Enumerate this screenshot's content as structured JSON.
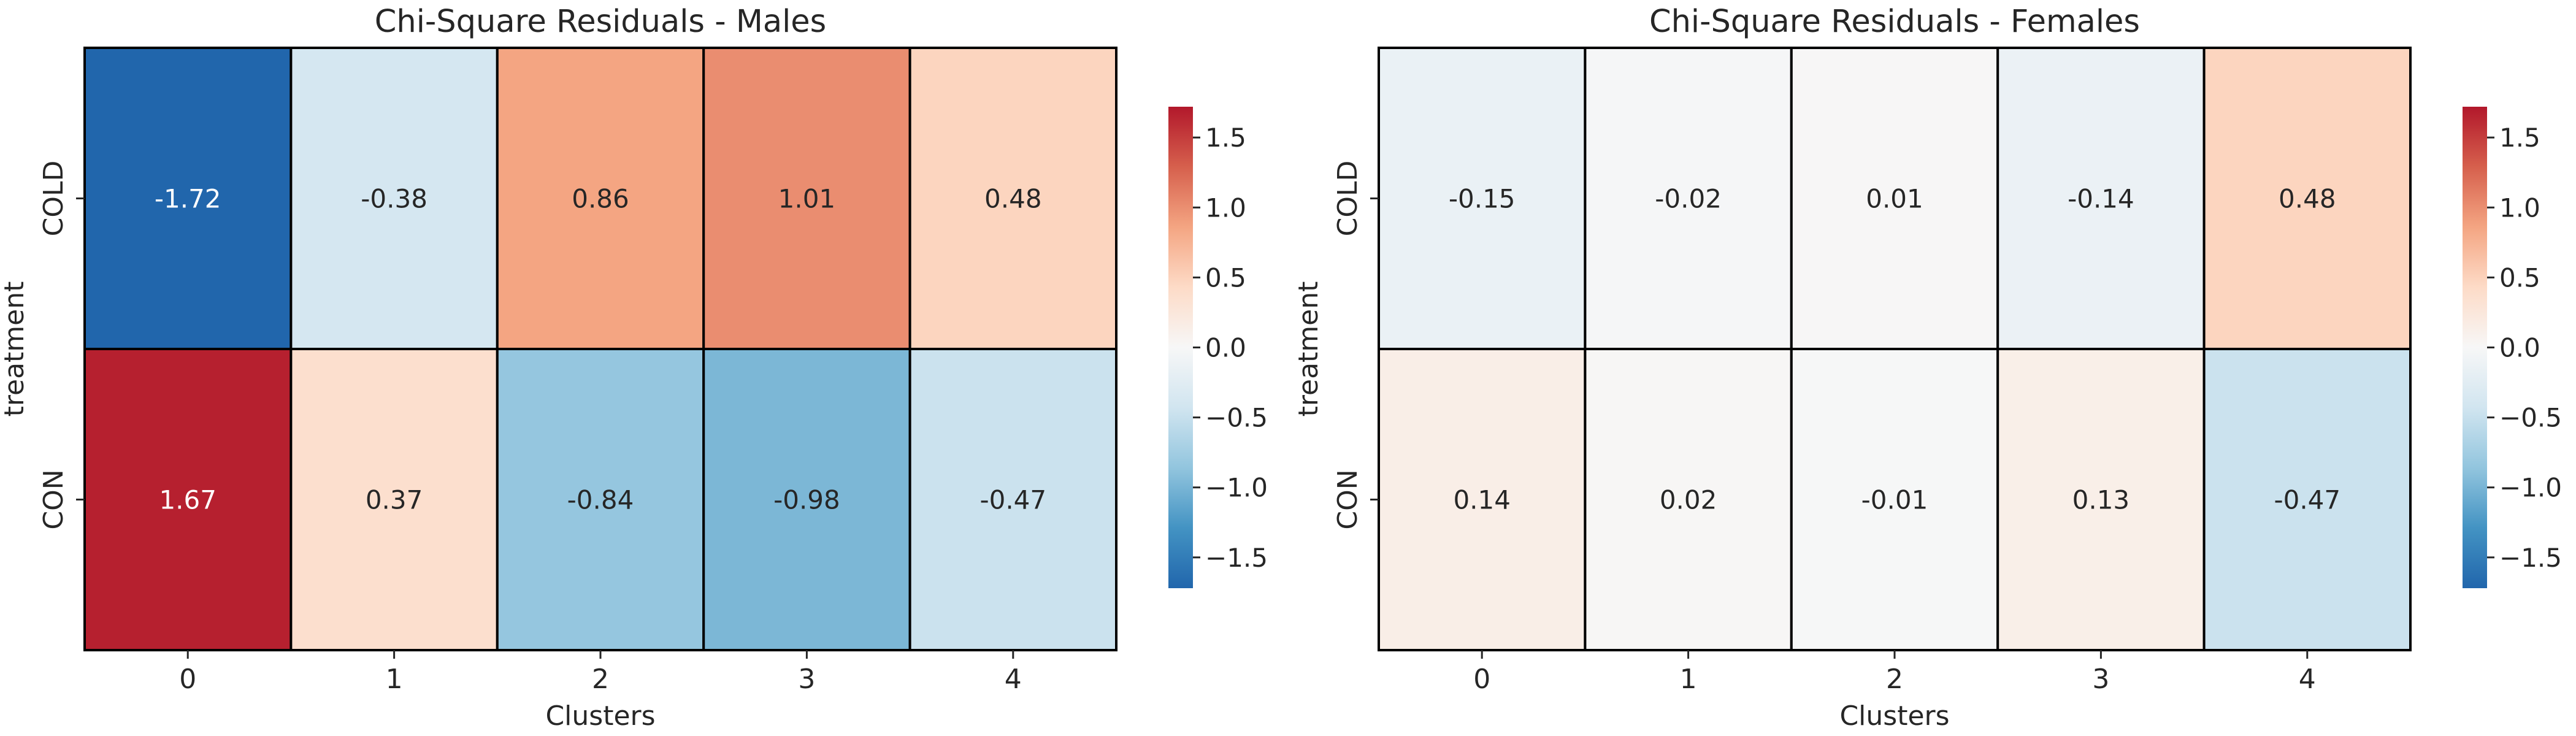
{
  "chart_data": [
    {
      "type": "heatmap",
      "title": "Chi-Square Residuals - Males",
      "xlabel": "Clusters",
      "ylabel": "treatment",
      "x_categories": [
        "0",
        "1",
        "2",
        "3",
        "4"
      ],
      "y_categories": [
        "COLD",
        "CON"
      ],
      "values": [
        [
          -1.72,
          -0.38,
          0.86,
          1.01,
          0.48
        ],
        [
          1.67,
          0.37,
          -0.84,
          -0.98,
          -0.47
        ]
      ],
      "value_labels": [
        [
          "-1.72",
          "-0.38",
          "0.86",
          "1.01",
          "0.48"
        ],
        [
          "1.67",
          "0.37",
          "-0.84",
          "-0.98",
          "-0.47"
        ]
      ],
      "colorbar": {
        "vmin": -1.72,
        "vmax": 1.72,
        "ticks": [
          1.5,
          1.0,
          0.5,
          0.0,
          -0.5,
          -1.0,
          -1.5
        ],
        "tick_labels": [
          "1.5",
          "1.0",
          "0.5",
          "0.0",
          "−0.5",
          "−1.0",
          "−1.5"
        ]
      },
      "colormap": "RdBu_r",
      "grid": "black cell borders"
    },
    {
      "type": "heatmap",
      "title": "Chi-Square Residuals - Females",
      "xlabel": "Clusters",
      "ylabel": "treatment",
      "x_categories": [
        "0",
        "1",
        "2",
        "3",
        "4"
      ],
      "y_categories": [
        "COLD",
        "CON"
      ],
      "values": [
        [
          -0.15,
          -0.02,
          0.01,
          -0.14,
          0.48
        ],
        [
          0.14,
          0.02,
          -0.01,
          0.13,
          -0.47
        ]
      ],
      "value_labels": [
        [
          "-0.15",
          "-0.02",
          "0.01",
          "-0.14",
          "0.48"
        ],
        [
          "0.14",
          "0.02",
          "-0.01",
          "0.13",
          "-0.47"
        ]
      ],
      "colorbar": {
        "vmin": -1.72,
        "vmax": 1.72,
        "ticks": [
          1.5,
          1.0,
          0.5,
          0.0,
          -0.5,
          -1.0,
          -1.5
        ],
        "tick_labels": [
          "1.5",
          "1.0",
          "0.5",
          "0.0",
          "−0.5",
          "−1.0",
          "−1.5"
        ]
      },
      "colormap": "RdBu_r",
      "grid": "black cell borders"
    }
  ]
}
